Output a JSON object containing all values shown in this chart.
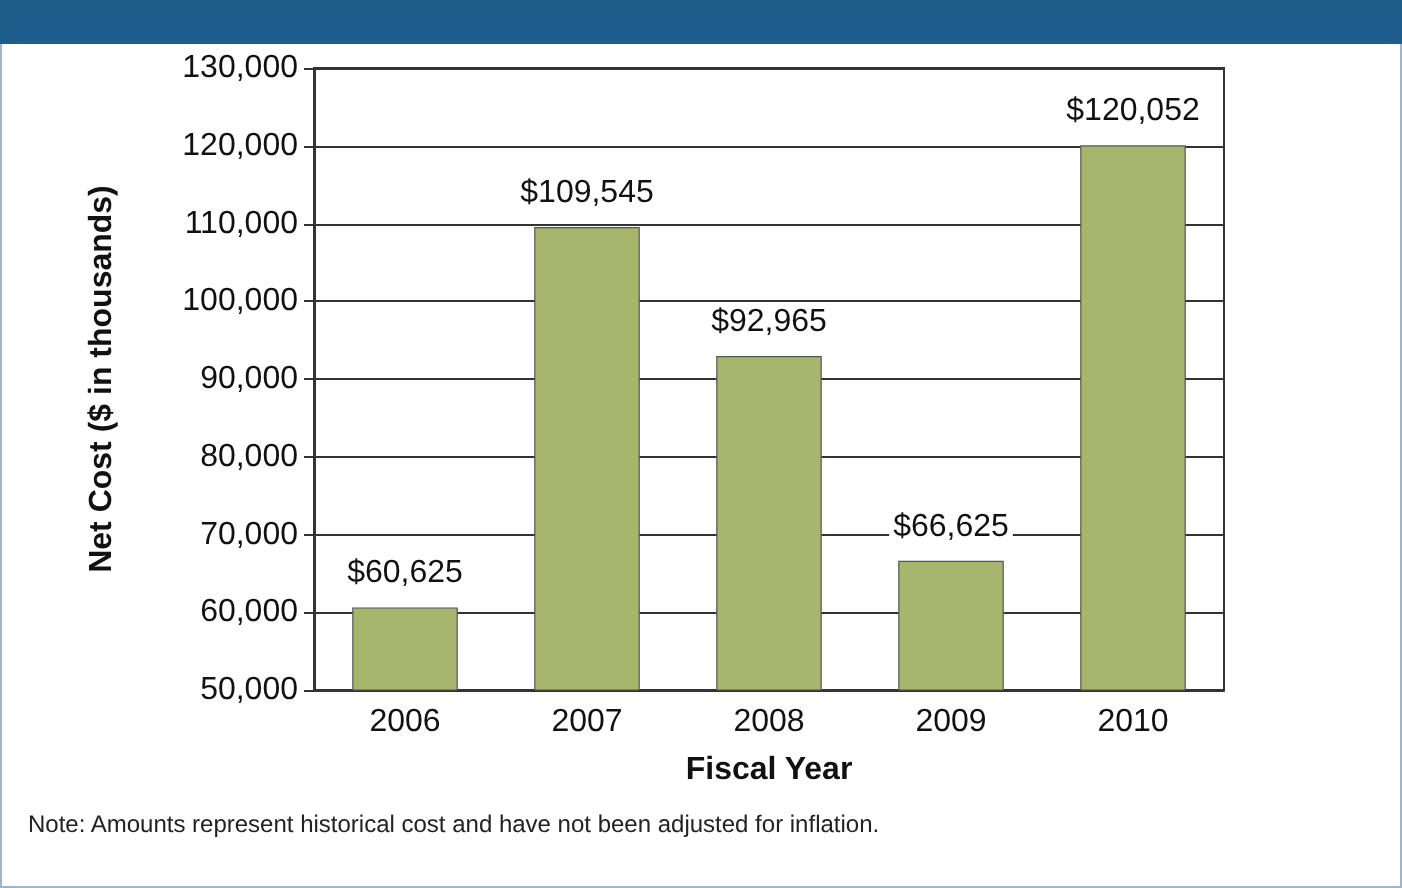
{
  "chart_data": {
    "type": "bar",
    "xlabel": "Fiscal Year",
    "ylabel": "Net Cost ($ in thousands)",
    "categories": [
      "2006",
      "2007",
      "2008",
      "2009",
      "2010"
    ],
    "values": [
      60625,
      109545,
      92965,
      66625,
      120052
    ],
    "value_labels": [
      "$60,625",
      "$109,545",
      "$92,965",
      "$66,625",
      "$120,052"
    ],
    "color": "#a8b56c",
    "ylim": [
      50000,
      130000
    ],
    "yticks": [
      {
        "value": 50000,
        "label": "50,000"
      },
      {
        "value": 60000,
        "label": "60,000"
      },
      {
        "value": 70000,
        "label": "70,000"
      },
      {
        "value": 80000,
        "label": "80,000"
      },
      {
        "value": 90000,
        "label": "90,000"
      },
      {
        "value": 100000,
        "label": "100,000"
      },
      {
        "value": 110000,
        "label": "110,000"
      },
      {
        "value": 120000,
        "label": "120,000"
      },
      {
        "value": 130000,
        "label": "130,000"
      }
    ],
    "grid": "y",
    "annotations": [
      "Note: Amounts represent historical cost and have not been adjusted for inflation."
    ]
  }
}
